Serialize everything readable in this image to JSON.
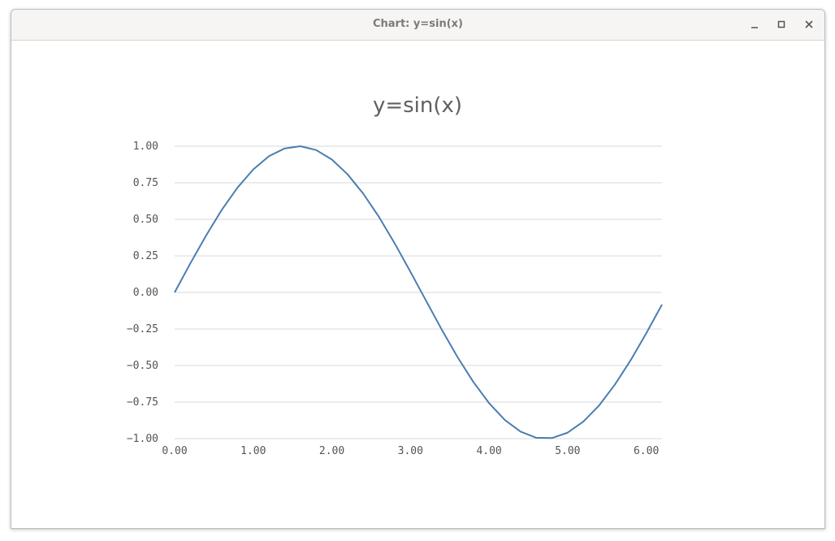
{
  "window": {
    "title": "Chart: y=sin(x)",
    "controls": [
      "minimize-icon",
      "maximize-icon",
      "close-icon"
    ]
  },
  "chart_data": {
    "type": "line",
    "title": "y=sin(x)",
    "xlabel": "",
    "ylabel": "",
    "xlim": [
      0,
      6.2
    ],
    "ylim": [
      -1,
      1
    ],
    "grid": true,
    "x_ticks": [
      "0.00",
      "1.00",
      "2.00",
      "3.00",
      "4.00",
      "5.00",
      "6.00"
    ],
    "y_ticks": [
      "1.00",
      "0.75",
      "0.50",
      "0.25",
      "0.00",
      "−0.25",
      "−0.50",
      "−0.75",
      "−1.00"
    ],
    "series": [
      {
        "color": "#4a7eb0",
        "x": [
          0.0,
          0.2,
          0.4,
          0.6,
          0.8,
          1.0,
          1.2,
          1.4,
          1.6,
          1.8,
          2.0,
          2.2,
          2.4,
          2.6,
          2.8,
          3.0,
          3.2,
          3.4,
          3.6,
          3.8,
          4.0,
          4.2,
          4.4,
          4.6,
          4.8,
          5.0,
          5.2,
          5.4,
          5.6,
          5.8,
          6.0,
          6.2
        ],
        "y": [
          0.0,
          0.199,
          0.389,
          0.565,
          0.717,
          0.841,
          0.932,
          0.985,
          1.0,
          0.974,
          0.909,
          0.808,
          0.675,
          0.516,
          0.335,
          0.141,
          -0.058,
          -0.256,
          -0.443,
          -0.612,
          -0.757,
          -0.872,
          -0.952,
          -0.994,
          -0.996,
          -0.959,
          -0.883,
          -0.773,
          -0.631,
          -0.465,
          -0.279,
          -0.083
        ]
      }
    ]
  }
}
